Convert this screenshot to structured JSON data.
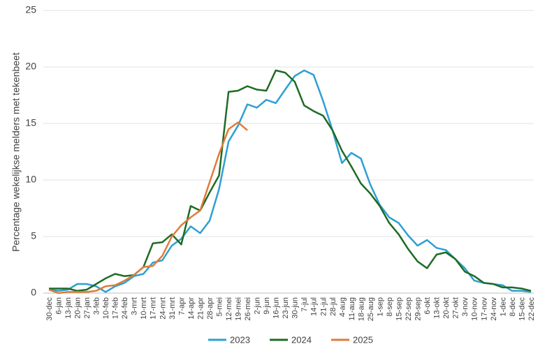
{
  "chart_data": {
    "type": "line",
    "y_label": "Percentage wekelijkse melders met tekenbeet",
    "categories": [
      "30-dec",
      "6-jan",
      "13-jan",
      "20-jan",
      "27-jan",
      "3-feb",
      "10-feb",
      "17-feb",
      "24-feb",
      "3-mrt",
      "10-mrt",
      "17-mrt",
      "24-mrt",
      "31-mrt",
      "7-apr",
      "14-apr",
      "21-apr",
      "28-apr",
      "5-mei",
      "12-mei",
      "19-mei",
      "26-mei",
      "2-jun",
      "9-jun",
      "16-jun",
      "23-jun",
      "30-jun",
      "7-jul",
      "14-jul",
      "21-jul",
      "28-jul",
      "4-aug",
      "11-aug",
      "18-aug",
      "25-aug",
      "1-sep",
      "8-sep",
      "15-sep",
      "22-sep",
      "29-sep",
      "6-okt",
      "13-okt",
      "20-okt",
      "27-okt",
      "3-nov",
      "10-nov",
      "17-nov",
      "24-nov",
      "1-dec",
      "8-dec",
      "15-dec",
      "22-dec"
    ],
    "series": [
      {
        "name": "2023",
        "color": "#2e9fd4",
        "values": [
          0.3,
          0.2,
          0.3,
          0.8,
          0.8,
          0.6,
          0.1,
          0.6,
          0.9,
          1.5,
          1.7,
          2.7,
          2.9,
          4.2,
          4.8,
          5.9,
          5.3,
          6.4,
          9.2,
          13.4,
          14.8,
          16.7,
          16.4,
          17.1,
          16.8,
          18.0,
          19.2,
          19.7,
          19.3,
          17.0,
          14.4,
          11.5,
          12.4,
          11.9,
          9.6,
          7.8,
          6.7,
          6.2,
          5.1,
          4.2,
          4.7,
          4.0,
          3.8,
          3.0,
          2.2,
          1.1,
          0.9,
          0.8,
          0.7,
          0.2,
          0.2,
          0.1
        ]
      },
      {
        "name": "2024",
        "color": "#1e6b24",
        "values": [
          0.4,
          0.4,
          0.4,
          0.2,
          0.3,
          0.8,
          1.3,
          1.7,
          1.5,
          1.6,
          2.3,
          4.4,
          4.5,
          5.2,
          4.3,
          7.7,
          7.3,
          8.9,
          10.4,
          17.8,
          17.9,
          18.3,
          18.0,
          17.9,
          19.7,
          19.5,
          18.7,
          16.6,
          16.1,
          15.7,
          14.4,
          12.6,
          11.2,
          9.7,
          8.8,
          7.7,
          6.2,
          5.2,
          3.9,
          2.8,
          2.2,
          3.4,
          3.6,
          3.0,
          1.9,
          1.5,
          0.9,
          0.8,
          0.5,
          0.5,
          0.4,
          0.2
        ]
      },
      {
        "name": "2025",
        "color": "#e07b39",
        "values": [
          0.3,
          0.0,
          0.1,
          0.1,
          0.1,
          0.2,
          0.6,
          0.7,
          1.1,
          1.6,
          2.3,
          2.4,
          3.3,
          5.0,
          6.0,
          6.7,
          7.3,
          9.8,
          12.3,
          14.5,
          15.1,
          14.4,
          null,
          null,
          null,
          null,
          null,
          null,
          null,
          null,
          null,
          null,
          null,
          null,
          null,
          null,
          null,
          null,
          null,
          null,
          null,
          null,
          null,
          null,
          null,
          null,
          null,
          null,
          null,
          null,
          null,
          null
        ]
      }
    ],
    "ylim": [
      0,
      25
    ],
    "yticks": [
      0,
      5,
      10,
      15,
      20,
      25
    ],
    "grid": true,
    "legend": "bottom"
  }
}
